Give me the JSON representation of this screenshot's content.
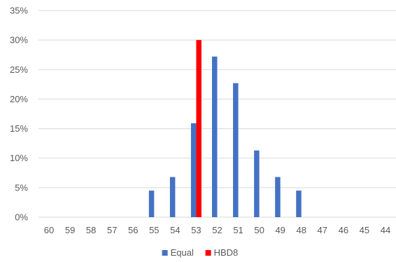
{
  "chart_data": {
    "type": "bar",
    "categories": [
      "60",
      "59",
      "58",
      "57",
      "56",
      "55",
      "54",
      "53",
      "52",
      "51",
      "50",
      "49",
      "48",
      "47",
      "46",
      "45",
      "44"
    ],
    "series": [
      {
        "name": "Equal",
        "color": "#4472C4",
        "values": [
          0,
          0,
          0,
          0,
          0,
          4.5,
          6.8,
          15.9,
          27.2,
          22.7,
          11.3,
          6.8,
          4.5,
          0,
          0,
          0,
          0
        ]
      },
      {
        "name": "HBD8",
        "color": "#FF0000",
        "values": [
          0,
          0,
          0,
          0,
          0,
          0,
          0,
          30,
          0,
          0,
          0,
          0,
          0,
          0,
          0,
          0,
          0
        ]
      }
    ],
    "y_ticks": [
      "0%",
      "5%",
      "10%",
      "15%",
      "20%",
      "25%",
      "30%",
      "35%"
    ],
    "ylim": [
      0,
      35
    ],
    "y_step": 5,
    "grid": true,
    "gridline_color": "#D9D9D9",
    "legend": "bottom-center",
    "title": "",
    "xlabel": "",
    "ylabel": ""
  }
}
